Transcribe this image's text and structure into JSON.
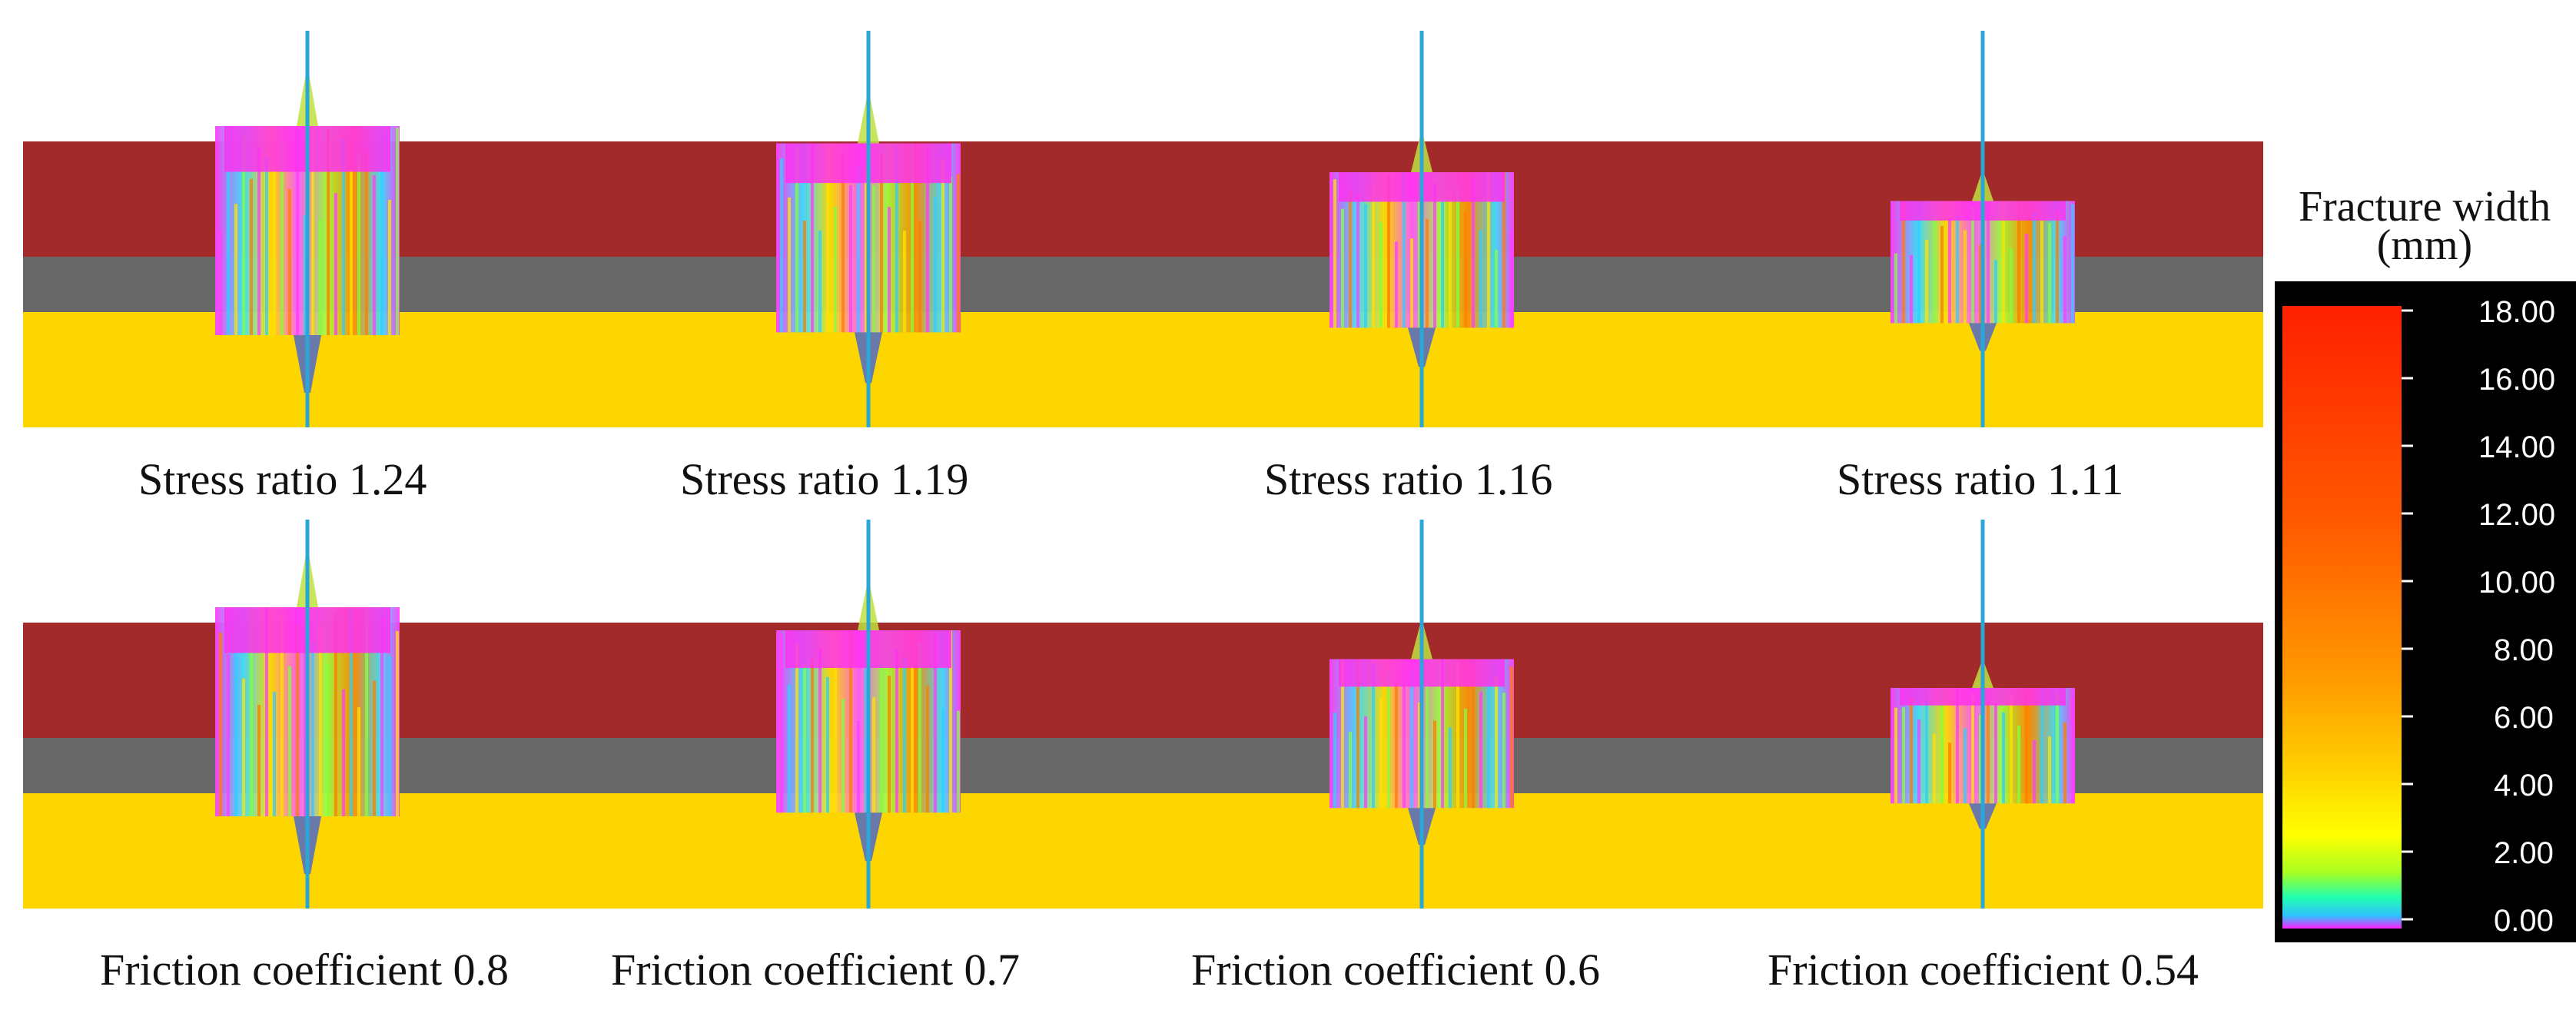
{
  "panels": [
    {
      "label": "Stress ratio 1.24",
      "row": 0,
      "col": 0,
      "scale": 1.0
    },
    {
      "label": "Stress ratio 1.19",
      "row": 0,
      "col": 1,
      "scale": 0.85
    },
    {
      "label": "Stress ratio 1.16",
      "row": 0,
      "col": 2,
      "scale": 0.6
    },
    {
      "label": "Stress ratio 1.11",
      "row": 0,
      "col": 3,
      "scale": 0.35
    },
    {
      "label": "Friction coefficient 0.8",
      "row": 1,
      "col": 0,
      "scale": 1.0
    },
    {
      "label": "Friction coefficient 0.7",
      "row": 1,
      "col": 1,
      "scale": 0.8
    },
    {
      "label": "Friction coefficient 0.6",
      "row": 1,
      "col": 2,
      "scale": 0.55
    },
    {
      "label": "Friction coefficient 0.54",
      "row": 1,
      "col": 3,
      "scale": 0.3
    }
  ],
  "layers": {
    "top_color": "#a32a2a",
    "middle_color": "#676767",
    "bottom_color": "#fdd600",
    "wellbore_color": "#2aa7d6"
  },
  "colorbar": {
    "title_line1": "Fracture width",
    "title_line2": "(mm)",
    "ticks": [
      "18.00",
      "16.00",
      "14.00",
      "12.00",
      "10.00",
      "8.00",
      "6.00",
      "4.00",
      "2.00",
      "0.00"
    ]
  }
}
